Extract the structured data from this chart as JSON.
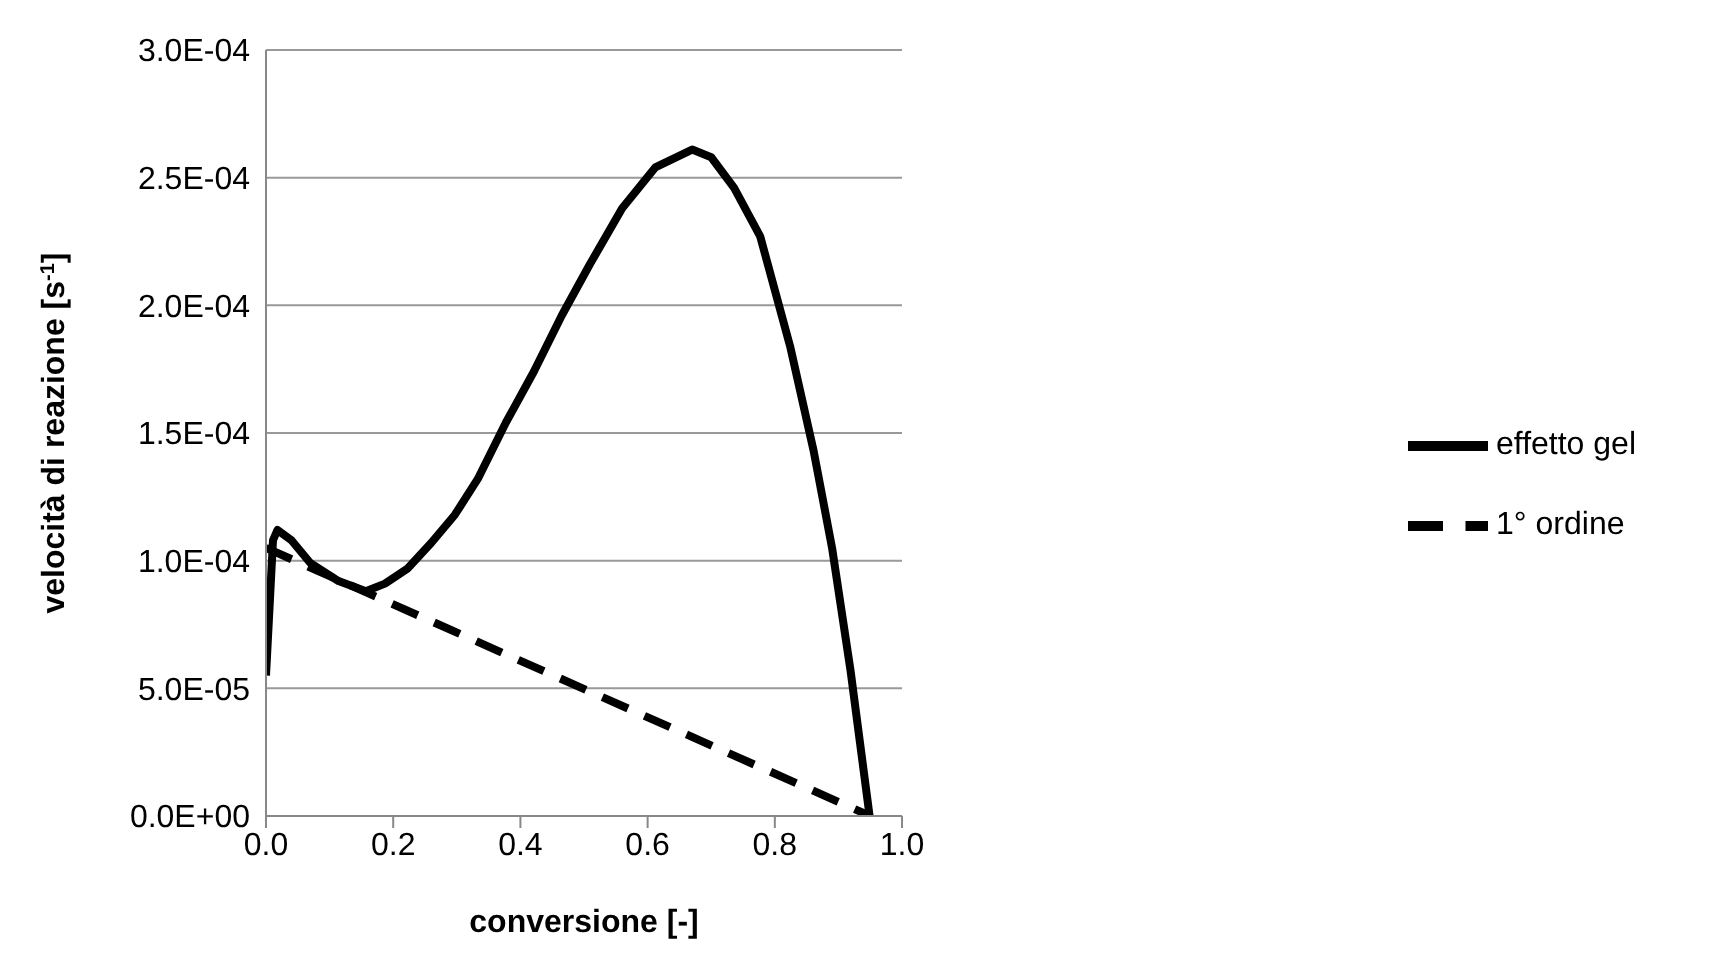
{
  "chart_data": {
    "type": "line",
    "xlabel": "conversione [-]",
    "ylabel": "velocità di reazione [s$^{-1}$]",
    "series": [
      {
        "name": "effetto gel",
        "color": "#000000",
        "line_style": "solid",
        "x": [
          0,
          0.011,
          0.018,
          0.04,
          0.07,
          0.114,
          0.157,
          0.187,
          0.223,
          0.26,
          0.297,
          0.333,
          0.377,
          0.421,
          0.465,
          0.509,
          0.56,
          0.612,
          0.67,
          0.7,
          0.736,
          0.777,
          0.824,
          0.861,
          0.89,
          0.919,
          0.949
        ],
        "values": [
          5.5e-05,
          0.000108,
          0.000112,
          0.000108,
          9.9e-05,
          9.2e-05,
          8.8e-05,
          9.1e-05,
          9.7e-05,
          0.000107,
          0.000118,
          0.000132,
          0.000154,
          0.000174,
          0.000196,
          0.000216,
          0.000238,
          0.000254,
          0.000261,
          0.000258,
          0.000246,
          0.000227,
          0.000184,
          0.000143,
          0.000105,
          5.7e-05,
          0
        ]
      },
      {
        "name": "1° ordine",
        "color": "#000000",
        "line_style": "dashed",
        "x": [
          0,
          0.95
        ],
        "values": [
          0.000105,
          0
        ]
      }
    ],
    "xlim": [
      0,
      1
    ],
    "xticks": [
      {
        "value": 0,
        "label": "0.0"
      },
      {
        "value": 0.2,
        "label": "0.2"
      },
      {
        "value": 0.4,
        "label": "0.4"
      },
      {
        "value": 0.6,
        "label": "0.6"
      },
      {
        "value": 0.8,
        "label": "0.8"
      },
      {
        "value": 1,
        "label": "1.0"
      }
    ],
    "ylim": [
      0,
      0.0003
    ],
    "yticks": [
      {
        "value": 0,
        "label": "0.0E+00"
      },
      {
        "value": 5e-05,
        "label": "5.0E-05"
      },
      {
        "value": 0.0001,
        "label": "1.0E-04"
      },
      {
        "value": 0.00015,
        "label": "1.5E-04"
      },
      {
        "value": 0.0002,
        "label": "2.0E-04"
      },
      {
        "value": 0.00025,
        "label": "2.5E-04"
      },
      {
        "value": 0.0003,
        "label": "3.0E-04"
      }
    ],
    "grid": "y",
    "legend": "right",
    "marker": "none"
  }
}
